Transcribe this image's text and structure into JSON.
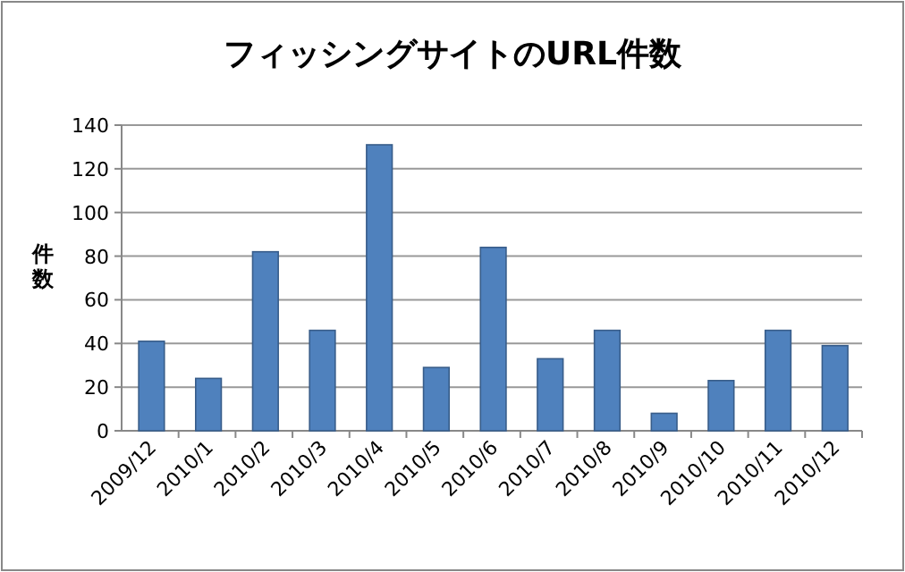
{
  "chart_data": {
    "type": "bar",
    "title": "フィッシングサイトのURL件数",
    "ylabel": "件数",
    "categories": [
      "2009/12",
      "2010/1",
      "2010/2",
      "2010/3",
      "2010/4",
      "2010/5",
      "2010/6",
      "2010/7",
      "2010/8",
      "2010/9",
      "2010/10",
      "2010/11",
      "2010/12"
    ],
    "values": [
      41,
      24,
      82,
      46,
      131,
      29,
      84,
      33,
      46,
      8,
      23,
      46,
      39
    ],
    "color": "#4f81bd",
    "ylim": [
      0,
      140
    ],
    "yticks": [
      0,
      20,
      40,
      60,
      80,
      100,
      120,
      140
    ],
    "grid": "y"
  }
}
